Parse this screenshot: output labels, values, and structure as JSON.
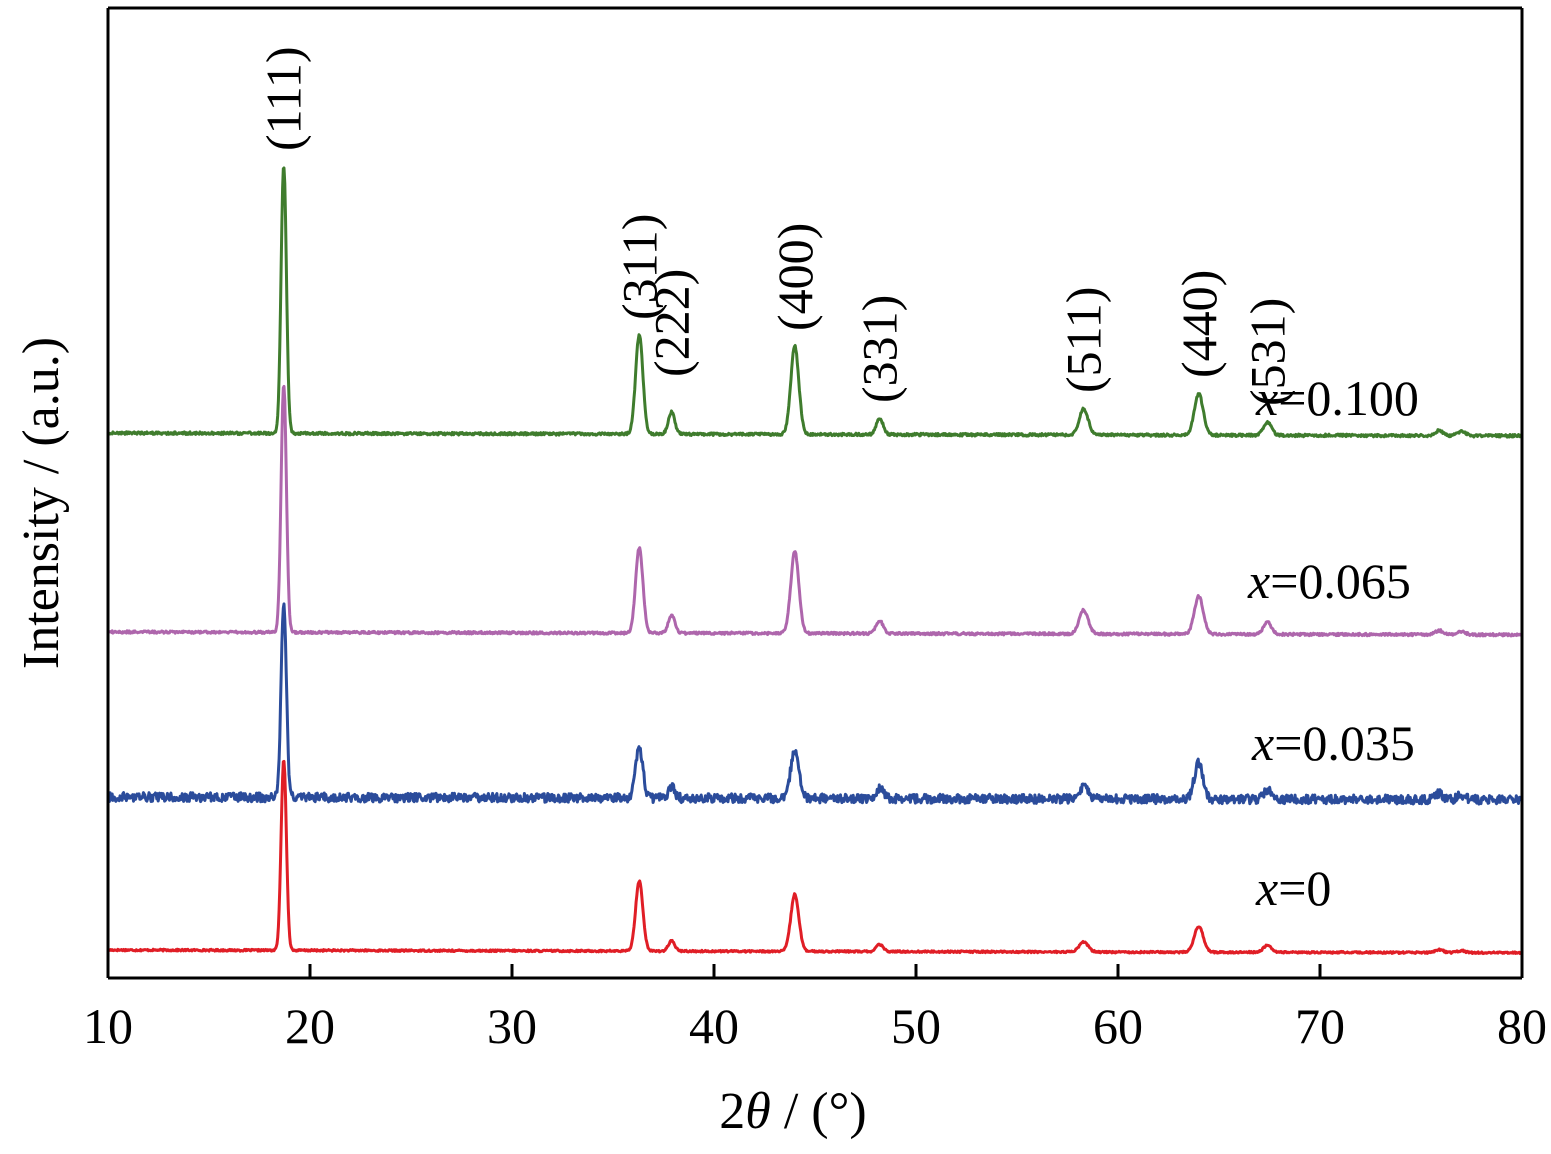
{
  "chart_data": {
    "type": "line",
    "xlabel_prefix": "2",
    "xlabel_symbol": "θ",
    "xlabel_suffix": " / (°)",
    "ylabel": "Intensity / (a.u.)",
    "xlim": [
      10,
      80
    ],
    "x_ticks": [
      10,
      20,
      30,
      40,
      50,
      60,
      70,
      80
    ],
    "y_ticks": [],
    "grid": false,
    "legend": "inline labels at right of each trace",
    "peak_positions": [
      18.7,
      36.3,
      37.9,
      44.0,
      48.2,
      58.3,
      64.0,
      67.4,
      75.9,
      77.0
    ],
    "peak_labels": [
      {
        "text": "(111)",
        "x": 18.7
      },
      {
        "text": "(311)",
        "x": 36.3
      },
      {
        "text": "(222)",
        "x": 37.9
      },
      {
        "text": "(400)",
        "x": 44.0
      },
      {
        "text": "(331)",
        "x": 48.2
      },
      {
        "text": "(511)",
        "x": 58.3
      },
      {
        "text": "(440)",
        "x": 64.0
      },
      {
        "text": "(531)",
        "x": 67.4
      }
    ],
    "series": [
      {
        "name": "x=0",
        "var": "x",
        "val": "=0",
        "color": "#e01e26",
        "offset": 0,
        "noise": 0.9,
        "peak_heights": [
          190,
          70,
          10,
          57,
          7,
          10,
          26,
          7,
          3,
          2
        ]
      },
      {
        "name": "x=0.035",
        "var": "x",
        "val": "=0.035",
        "color": "#2b4c9b",
        "offset": 153,
        "noise": 4.5,
        "peak_heights": [
          195,
          50,
          12,
          50,
          10,
          12,
          36,
          9,
          6,
          5
        ]
      },
      {
        "name": "x=0.065",
        "var": "x",
        "val": "=0.065",
        "color": "#ae66ac",
        "offset": 318,
        "noise": 1.2,
        "peak_heights": [
          248,
          85,
          18,
          82,
          13,
          24,
          38,
          12,
          4,
          3
        ]
      },
      {
        "name": "x=0.100",
        "var": "x",
        "val": "=0.100",
        "color": "#3f7c2d",
        "offset": 517,
        "noise": 1.3,
        "peak_heights": [
          268,
          99,
          22,
          88,
          16,
          26,
          41,
          13,
          5,
          4
        ]
      }
    ]
  }
}
